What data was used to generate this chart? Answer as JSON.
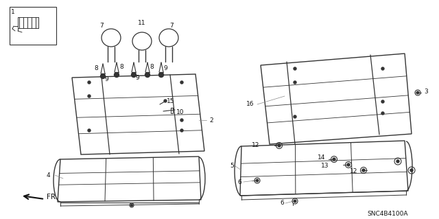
{
  "bg_color": "#ffffff",
  "line_color": "#333333",
  "text_color": "#111111",
  "diagram_id": "SNC4B4100A",
  "font_size": 6.5,
  "fr_text": "FR.",
  "label_fs": 6.5
}
